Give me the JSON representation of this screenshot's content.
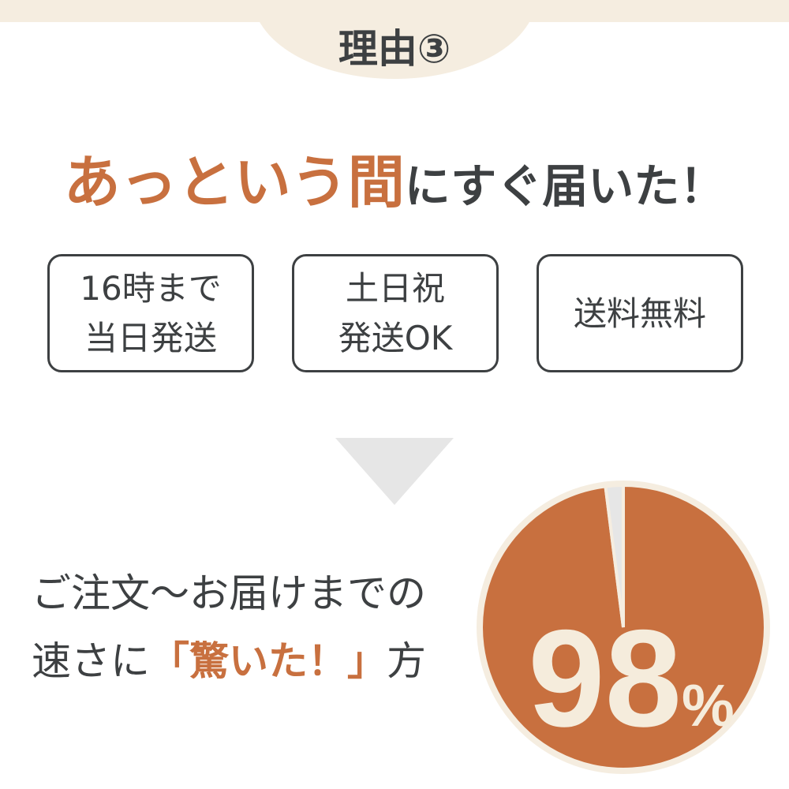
{
  "colors": {
    "accent": "#c8703f",
    "dark": "#3d4042",
    "cream": "#f5ede0",
    "gray": "#e6e6e6"
  },
  "header": {
    "title": "理由③"
  },
  "headline": {
    "accent": "あっという間",
    "rest": "にすぐ届いた！"
  },
  "features": [
    {
      "line1": "16時まで",
      "line2": "当日発送"
    },
    {
      "line1": "土日祝",
      "line2": "発送OK"
    },
    {
      "line1": "送料無料",
      "line2": ""
    }
  ],
  "statement": {
    "line1": "ご注文～お届けまでの",
    "line2_pre": "速さに",
    "line2_accent": "「驚いた！」",
    "line2_post": "方"
  },
  "chart_data": {
    "type": "pie",
    "values": [
      98,
      2
    ],
    "label_value": "98",
    "label_unit": "%"
  }
}
